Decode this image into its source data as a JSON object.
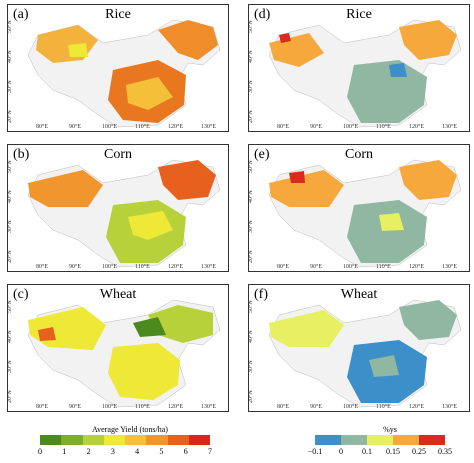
{
  "panels": [
    {
      "label": "(a)",
      "title": "Rice"
    },
    {
      "label": "(b)",
      "title": "Corn"
    },
    {
      "label": "(c)",
      "title": "Wheat"
    },
    {
      "label": "(d)",
      "title": "Rice"
    },
    {
      "label": "(e)",
      "title": "Corn"
    },
    {
      "label": "(f)",
      "title": "Wheat"
    }
  ],
  "lat_ticks": [
    "50°N",
    "40°N",
    "30°N",
    "20°N"
  ],
  "lon_ticks": [
    "80°E",
    "90°E",
    "100°E",
    "110°E",
    "120°E",
    "130°E"
  ],
  "legend_left": {
    "title": "Average Yield (tons/ha)",
    "ticks": [
      "0",
      "1",
      "2",
      "3",
      "4",
      "5",
      "6",
      "7"
    ],
    "colors": [
      "#4c8a1e",
      "#7dae2b",
      "#b7d13a",
      "#eee836",
      "#f5c13a",
      "#f0962c",
      "#e8601e",
      "#d8281c"
    ]
  },
  "legend_right": {
    "title": "%ys",
    "ticks": [
      "−0.1",
      "0",
      "0.1",
      "0.15",
      "0.25",
      "0.35"
    ],
    "colors": [
      "#3d8fc9",
      "#8fb7a2",
      "#e7ef63",
      "#f6a83d",
      "#d82b1e"
    ]
  }
}
